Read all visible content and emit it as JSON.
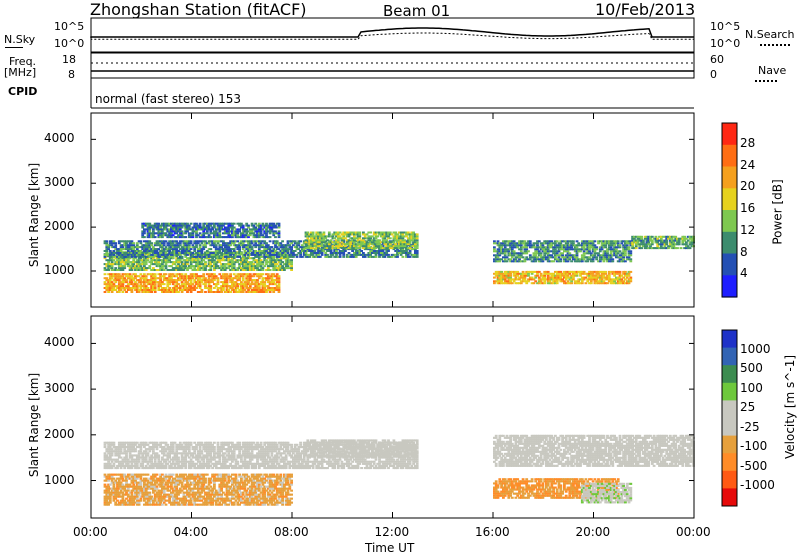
{
  "header": {
    "station": "Zhongshan Station (fitACF)",
    "beam": "Beam 01",
    "date": "10/Feb/2013"
  },
  "top_panel": {
    "left_label": "N.Sky",
    "right_label": "N.Search",
    "left_ticks": [
      "10^5",
      "10^0"
    ],
    "right_ticks": [
      "10^5",
      "10^0"
    ]
  },
  "freq_panel": {
    "left_label": "Freq.",
    "left_unit": "[MHz]",
    "left_ticks": [
      "18",
      "8"
    ],
    "right_label": "Nave",
    "right_ticks": [
      "60",
      "0"
    ]
  },
  "cpid": {
    "label": "CPID",
    "text": "normal (fast stereo) 153"
  },
  "colors": {
    "power_scale": [
      "#1e1eff",
      "#2450b4",
      "#3c8c6e",
      "#7ec850",
      "#e6d21e",
      "#f5a01e",
      "#ff6e14",
      "#ff2814"
    ],
    "velocity_scale": [
      "#e60a0a",
      "#ff5a14",
      "#ff8c28",
      "#e6a03c",
      "#c8c8c0",
      "#c8c8c0",
      "#6ec83c",
      "#3c8c50",
      "#3264b4",
      "#1e32c8"
    ],
    "gray": "#c8c8c0"
  },
  "chart_data": [
    {
      "type": "heatmap",
      "title": "Power",
      "ylabel": "Slant Range [km]",
      "xlabel": "",
      "colorbar_label": "Power [dB]",
      "colorbar_ticks": [
        "28",
        "24",
        "20",
        "16",
        "12",
        "8",
        "4"
      ],
      "x_ticks": [
        "00:00",
        "04:00",
        "08:00",
        "12:00",
        "16:00",
        "20:00",
        "00:00"
      ],
      "y_ticks": [
        "4000",
        "3000",
        "2000",
        "1000"
      ],
      "ylim": [
        180,
        4600
      ],
      "xlim_hours": [
        0,
        24
      ],
      "clim": [
        0,
        32
      ],
      "bands": [
        {
          "t": [
            0.5,
            7.5
          ],
          "r": [
            500,
            950
          ],
          "v": 22
        },
        {
          "t": [
            0.5,
            8.0
          ],
          "r": [
            1000,
            1450
          ],
          "v": 13
        },
        {
          "t": [
            0.5,
            13.0
          ],
          "r": [
            1300,
            1700
          ],
          "v": 9
        },
        {
          "t": [
            2.0,
            7.5
          ],
          "r": [
            1750,
            2100
          ],
          "v": 8
        },
        {
          "t": [
            8.5,
            13.0
          ],
          "r": [
            1500,
            1900
          ],
          "v": 14
        },
        {
          "t": [
            16.0,
            21.5
          ],
          "r": [
            700,
            1000
          ],
          "v": 20
        },
        {
          "t": [
            16.0,
            21.5
          ],
          "r": [
            1200,
            1700
          ],
          "v": 10
        },
        {
          "t": [
            21.5,
            24.0
          ],
          "r": [
            1500,
            1800
          ],
          "v": 12
        }
      ]
    },
    {
      "type": "heatmap",
      "title": "Velocity",
      "ylabel": "Slant Range [km]",
      "xlabel": "Time UT",
      "colorbar_label": "Velocity [m s^-1]",
      "colorbar_ticks": [
        "1000",
        "500",
        "100",
        "25",
        "-25",
        "-100",
        "-500",
        "-1000"
      ],
      "x_ticks": [
        "00:00",
        "04:00",
        "08:00",
        "12:00",
        "16:00",
        "20:00",
        "00:00"
      ],
      "y_ticks": [
        "4000",
        "3000",
        "2000",
        "1000"
      ],
      "ylim": [
        180,
        4600
      ],
      "xlim_hours": [
        0,
        24
      ],
      "clim": [
        -1000,
        1000
      ],
      "bands": [
        {
          "t": [
            0.5,
            8.0
          ],
          "r": [
            450,
            1150
          ],
          "v": -300
        },
        {
          "t": [
            0.5,
            13.0
          ],
          "r": [
            1250,
            1850
          ],
          "v": 0
        },
        {
          "t": [
            8.5,
            13.0
          ],
          "r": [
            1500,
            1900
          ],
          "v": 0
        },
        {
          "t": [
            16.0,
            21.0
          ],
          "r": [
            600,
            1050
          ],
          "v": -400
        },
        {
          "t": [
            16.0,
            24.0
          ],
          "r": [
            1300,
            2000
          ],
          "v": 0
        },
        {
          "t": [
            19.5,
            21.5
          ],
          "r": [
            500,
            950
          ],
          "v": 120
        }
      ]
    }
  ]
}
